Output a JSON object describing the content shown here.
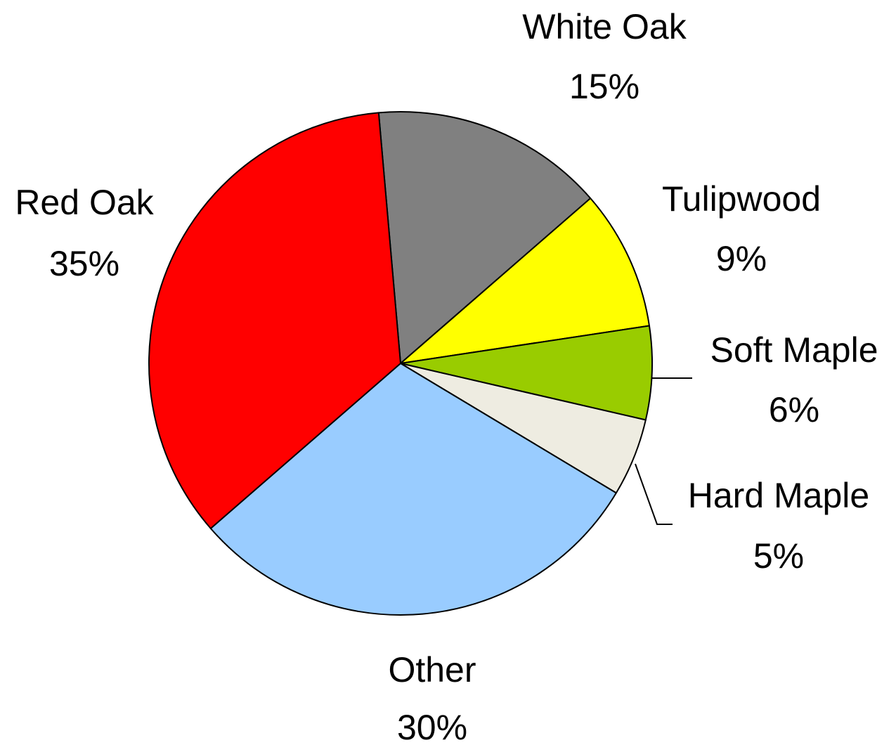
{
  "chart_data": {
    "type": "pie",
    "slices": [
      {
        "label": "White Oak",
        "value": 15,
        "value_label": "15%",
        "color": "#808080"
      },
      {
        "label": "Tulipwood",
        "value": 9,
        "value_label": "9%",
        "color": "#FFFF00"
      },
      {
        "label": "Soft Maple",
        "value": 6,
        "value_label": "6%",
        "color": "#99CC00"
      },
      {
        "label": "Hard Maple",
        "value": 5,
        "value_label": "5%",
        "color": "#EEECE1"
      },
      {
        "label": "Other",
        "value": 30,
        "value_label": "30%",
        "color": "#99CCFF"
      },
      {
        "label": "Red Oak",
        "value": 35,
        "value_label": "35%",
        "color": "#FF0000"
      }
    ]
  }
}
